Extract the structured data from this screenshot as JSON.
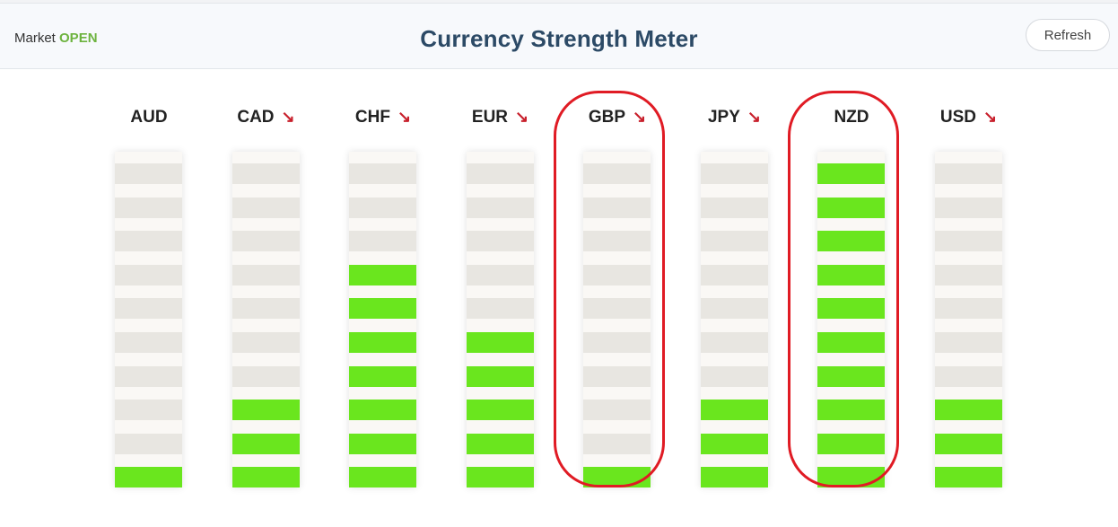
{
  "header": {
    "market_label": "Market",
    "market_status": "OPEN",
    "title": "Currency Strength Meter",
    "refresh_label": "Refresh"
  },
  "colors": {
    "segment_on": "#6ae61e",
    "segment_off": "#e8e6e1",
    "down_arrow": "#c8202c",
    "market_open": "#6db33f",
    "highlight": "#e01b24"
  },
  "total_segments": 10,
  "currencies": [
    {
      "code": "AUD",
      "trend": "",
      "strength": 1,
      "highlighted": false
    },
    {
      "code": "CAD",
      "trend": "↘",
      "strength": 3,
      "highlighted": false
    },
    {
      "code": "CHF",
      "trend": "↘",
      "strength": 7,
      "highlighted": false
    },
    {
      "code": "EUR",
      "trend": "↘",
      "strength": 5,
      "highlighted": false
    },
    {
      "code": "GBP",
      "trend": "↘",
      "strength": 1,
      "highlighted": true
    },
    {
      "code": "JPY",
      "trend": "↘",
      "strength": 3,
      "highlighted": false
    },
    {
      "code": "NZD",
      "trend": "",
      "strength": 10,
      "highlighted": true
    },
    {
      "code": "USD",
      "trend": "↘",
      "strength": 3,
      "highlighted": false
    }
  ]
}
